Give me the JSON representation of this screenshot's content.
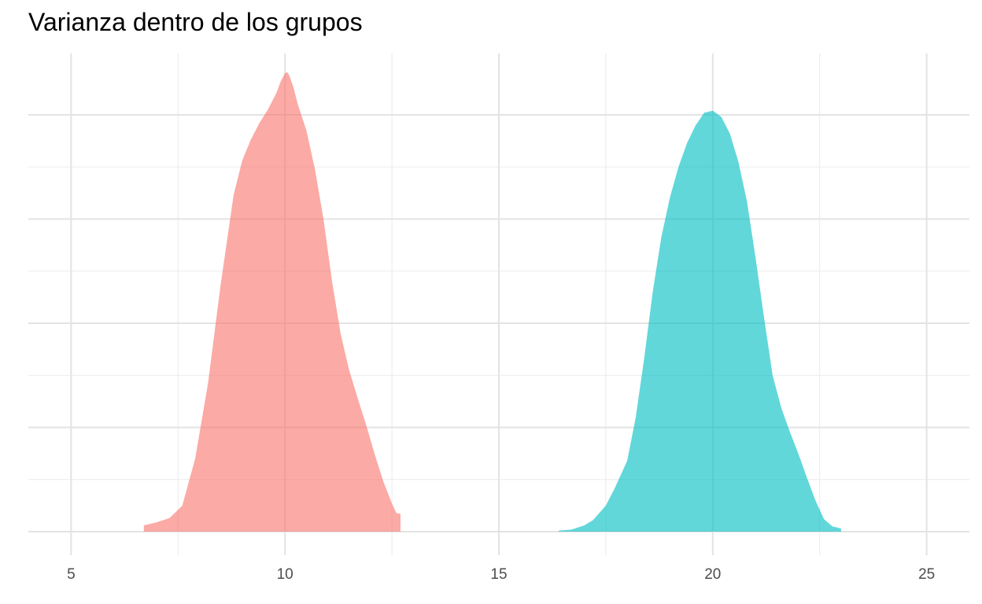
{
  "chart_data": {
    "type": "area",
    "title": "Varianza dentro de los grupos",
    "xlabel": "",
    "ylabel": "",
    "xlim": [
      4,
      26
    ],
    "ylim": [
      0,
      0.44
    ],
    "x_ticks": [
      5,
      10,
      15,
      20,
      25
    ],
    "x_tick_labels": [
      "5",
      "10",
      "15",
      "20",
      "25"
    ],
    "y_ticks": [
      0,
      0.1,
      0.2,
      0.3,
      0.4
    ],
    "grid": true,
    "legend": "none",
    "series": [
      {
        "color": "#F8766D",
        "x": [
          6.7,
          6.8,
          7.0,
          7.3,
          7.6,
          7.9,
          8.2,
          8.5,
          8.8,
          9.0,
          9.2,
          9.4,
          9.6,
          9.8,
          9.9,
          10.0,
          10.05,
          10.1,
          10.2,
          10.3,
          10.5,
          10.7,
          10.9,
          11.1,
          11.3,
          11.5,
          11.7,
          11.9,
          12.1,
          12.3,
          12.5,
          12.6,
          12.7
        ],
        "y": [
          0.006,
          0.007,
          0.009,
          0.013,
          0.025,
          0.07,
          0.142,
          0.238,
          0.323,
          0.356,
          0.376,
          0.392,
          0.405,
          0.421,
          0.432,
          0.44,
          0.441,
          0.438,
          0.426,
          0.41,
          0.385,
          0.348,
          0.3,
          0.24,
          0.19,
          0.155,
          0.128,
          0.102,
          0.074,
          0.048,
          0.027,
          0.018,
          0.017
        ]
      },
      {
        "color": "#00BFC4",
        "x": [
          16.4,
          16.7,
          17.0,
          17.2,
          17.5,
          17.7,
          18.0,
          18.2,
          18.4,
          18.6,
          18.8,
          19.0,
          19.2,
          19.4,
          19.6,
          19.8,
          20.0,
          20.2,
          20.4,
          20.6,
          20.8,
          21.0,
          21.2,
          21.4,
          21.6,
          21.8,
          22.0,
          22.2,
          22.4,
          22.6,
          22.8,
          23.0
        ],
        "y": [
          0.001,
          0.002,
          0.006,
          0.011,
          0.025,
          0.041,
          0.068,
          0.11,
          0.167,
          0.231,
          0.283,
          0.321,
          0.35,
          0.373,
          0.39,
          0.402,
          0.404,
          0.398,
          0.382,
          0.355,
          0.317,
          0.263,
          0.205,
          0.15,
          0.119,
          0.096,
          0.075,
          0.052,
          0.03,
          0.012,
          0.005,
          0.003
        ]
      }
    ]
  }
}
